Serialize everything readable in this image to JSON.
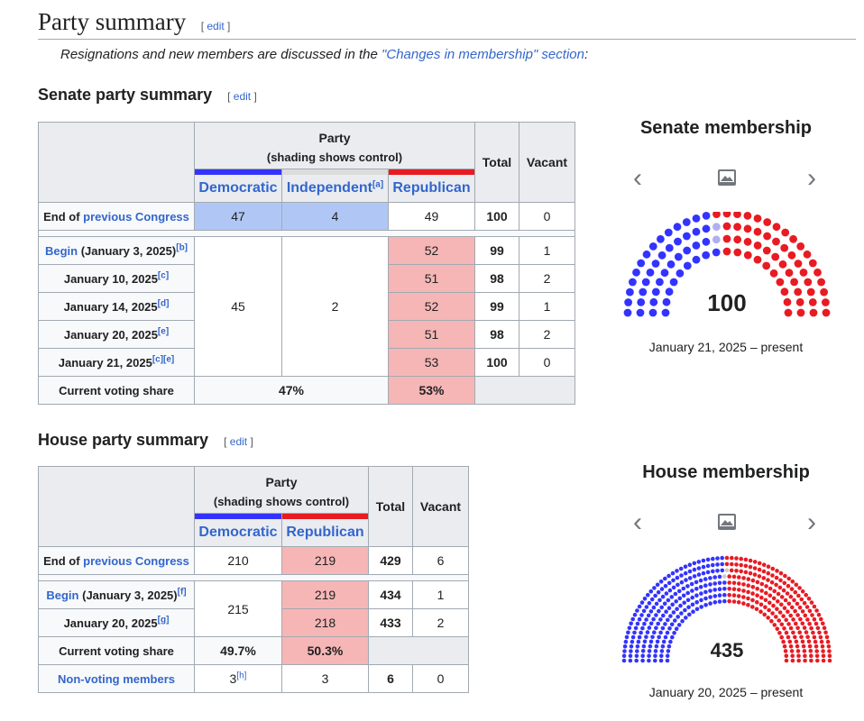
{
  "page": {
    "heading": "Party summary",
    "edit_open": "[ ",
    "edit_label": "edit",
    "edit_close": " ]",
    "hatnote_prefix": "Resignations and new members are discussed in the ",
    "hatnote_link": "\"Changes in membership\" section",
    "hatnote_suffix": ":"
  },
  "senate": {
    "heading": "Senate party summary",
    "party_header": "Party",
    "party_subheader": "(shading shows control)",
    "col_total": "Total",
    "col_vacant": "Vacant",
    "col_dem": "Democratic",
    "col_ind": "Independent",
    "col_ind_note": "[a]",
    "col_rep": "Republican",
    "end_prefix": "End of ",
    "end_link": "previous Congress",
    "end_dem": "47",
    "end_ind": "4",
    "end_rep": "49",
    "end_total": "100",
    "end_vacant": "0",
    "rows": [
      {
        "label_link": "Begin",
        "label": " (January 3, 2025)",
        "note": "[b]",
        "rep": "52",
        "total": "99",
        "vacant": "1"
      },
      {
        "label_link": "",
        "label": "January 10, 2025",
        "note": "[c]",
        "rep": "51",
        "total": "98",
        "vacant": "2"
      },
      {
        "label_link": "",
        "label": "January 14, 2025",
        "note": "[d]",
        "rep": "52",
        "total": "99",
        "vacant": "1"
      },
      {
        "label_link": "",
        "label": "January 20, 2025",
        "note": "[e]",
        "rep": "51",
        "total": "98",
        "vacant": "2"
      },
      {
        "label_link": "",
        "label": "January 21, 2025",
        "note": "[c][e]",
        "rep": "53",
        "total": "100",
        "vacant": "0"
      }
    ],
    "span_dem": "45",
    "span_ind": "2",
    "share_label": "Current voting share",
    "share_dem_ind": "47%",
    "share_rep": "53%",
    "chart": {
      "title": "Senate membership",
      "total": "100",
      "caption": "January 21, 2025 – present",
      "dem": 45,
      "ind": 2,
      "vacant": 0,
      "rep": 53,
      "colors": {
        "dem": "#3333ff",
        "ind": "#b0b0ee",
        "rep": "#e81b23"
      }
    }
  },
  "house": {
    "heading": "House party summary",
    "party_header": "Party",
    "party_subheader": "(shading shows control)",
    "col_total": "Total",
    "col_vacant": "Vacant",
    "col_dem": "Democratic",
    "col_rep": "Republican",
    "end_prefix": "End of ",
    "end_link": "previous Congress",
    "end_dem": "210",
    "end_rep": "219",
    "end_total": "429",
    "end_vacant": "6",
    "rows": [
      {
        "label_link": "Begin",
        "label": " (January 3, 2025)",
        "note": "[f]",
        "rep": "219",
        "total": "434",
        "vacant": "1"
      },
      {
        "label_link": "",
        "label": "January 20, 2025",
        "note": "[g]",
        "rep": "218",
        "total": "433",
        "vacant": "2"
      }
    ],
    "span_dem": "215",
    "share_label": "Current voting share",
    "share_dem": "49.7%",
    "share_rep": "50.3%",
    "nonvoting_label": "Non-voting members",
    "nonvoting_dem": "3",
    "nonvoting_dem_note": "[h]",
    "nonvoting_rep": "3",
    "nonvoting_total": "6",
    "nonvoting_vacant": "0",
    "chart": {
      "title": "House membership",
      "total": "435",
      "caption": "January 20, 2025 – present",
      "dem": 215,
      "vacant": 2,
      "rep": 218,
      "colors": {
        "dem": "#3333ff",
        "vacant": "#cccccc",
        "rep": "#e81b23"
      }
    }
  },
  "icons": {
    "prev": "chevron-left-icon",
    "next": "chevron-right-icon",
    "image": "image-icon"
  }
}
